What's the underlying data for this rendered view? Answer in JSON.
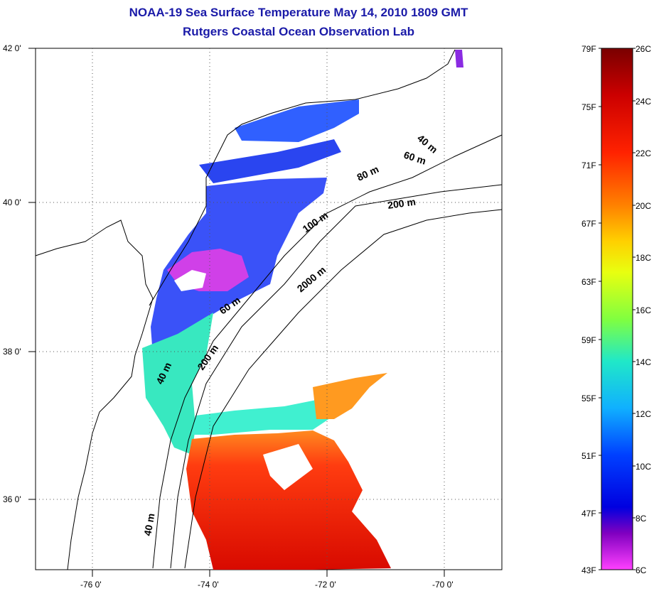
{
  "header": {
    "title_line1": "NOAA-19 Sea Surface Temperature May 14, 2010 1809 GMT",
    "title_line2": "Rutgers Coastal Ocean Observation Lab"
  },
  "map": {
    "lat_labels": [
      "42 0'",
      "40 0'",
      "38 0'",
      "36 0'"
    ],
    "lon_labels": [
      "-76 0'",
      "-74 0'",
      "-72 0'",
      "-70 0'"
    ],
    "contour_labels": [
      "40 m",
      "60 m",
      "80 m",
      "200 m",
      "100 m",
      "2000 m",
      "60 m",
      "200 m",
      "40 m",
      "40 m"
    ]
  },
  "colorbar": {
    "f_labels": [
      "79F",
      "75F",
      "71F",
      "67F",
      "63F",
      "59F",
      "55F",
      "51F",
      "47F",
      "43F"
    ],
    "c_labels": [
      "26C",
      "24C",
      "22C",
      "20C",
      "18C",
      "16C",
      "14C",
      "12C",
      "10C",
      "8C",
      "6C"
    ],
    "colors": [
      "#7a0000",
      "#cc0000",
      "#ff2200",
      "#ff8000",
      "#ffd000",
      "#e8ff10",
      "#80ff40",
      "#20e8c8",
      "#10b0ff",
      "#0040ff",
      "#0000e0",
      "#8000c0",
      "#ff40ff"
    ]
  }
}
